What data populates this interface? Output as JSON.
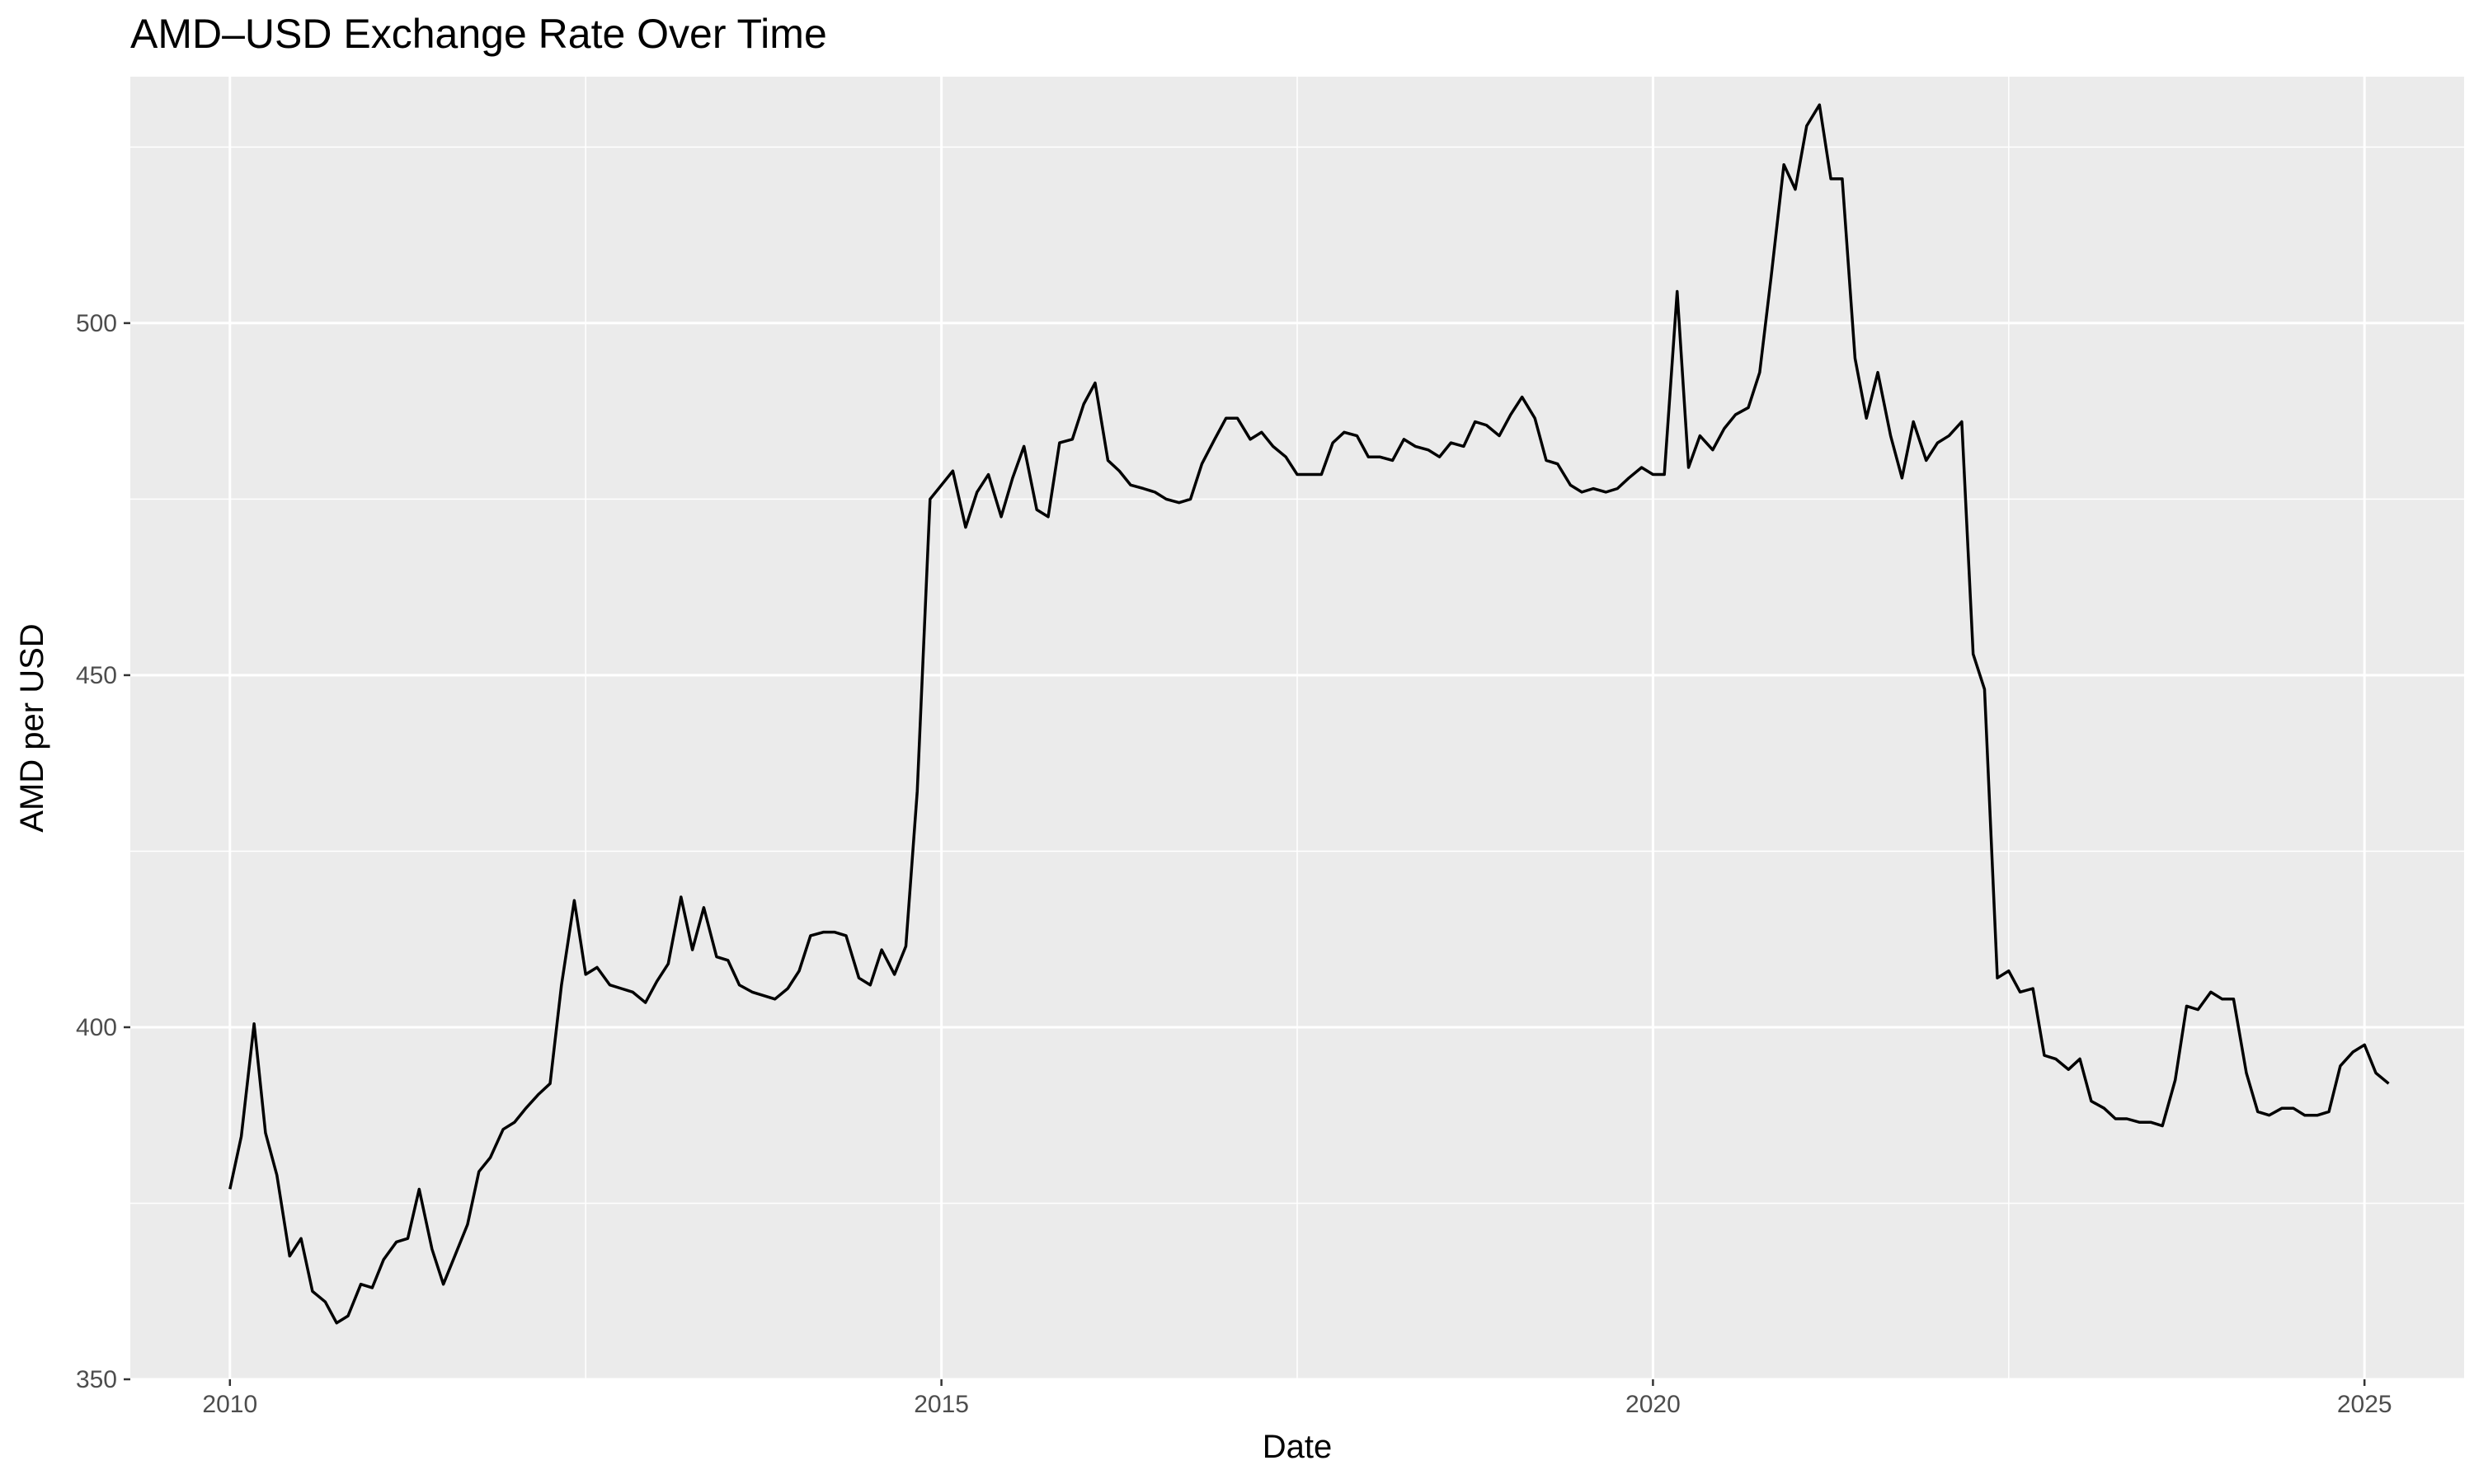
{
  "chart_data": {
    "type": "line",
    "title": "AMD–USD Exchange Rate Over Time",
    "xlabel": "Date",
    "ylabel": "AMD per USD",
    "xlim": [
      2009.3,
      2025.7
    ],
    "ylim": [
      350,
      535
    ],
    "x_ticks": [
      2010,
      2015,
      2020,
      2025
    ],
    "x_tick_labels": [
      "2010",
      "2015",
      "2020",
      "2025"
    ],
    "y_ticks": [
      350,
      400,
      450,
      500
    ],
    "y_tick_labels": [
      "350",
      "400",
      "450",
      "500"
    ],
    "grid": true,
    "background": "#ebebeb",
    "grid_color": "#ffffff",
    "line_color": "#000000",
    "series": [
      {
        "x": [
          2010.0,
          2010.08,
          2010.17,
          2010.25,
          2010.33,
          2010.42,
          2010.5,
          2010.58,
          2010.67,
          2010.75,
          2010.83,
          2010.92,
          2011.0,
          2011.08,
          2011.17,
          2011.25,
          2011.33,
          2011.42,
          2011.5,
          2011.58,
          2011.67,
          2011.75,
          2011.83,
          2011.92,
          2012.0,
          2012.08,
          2012.17,
          2012.25,
          2012.33,
          2012.42,
          2012.5,
          2012.58,
          2012.67,
          2012.75,
          2012.83,
          2012.92,
          2013.0,
          2013.08,
          2013.17,
          2013.25,
          2013.33,
          2013.42,
          2013.5,
          2013.58,
          2013.67,
          2013.75,
          2013.83,
          2013.92,
          2014.0,
          2014.08,
          2014.17,
          2014.25,
          2014.33,
          2014.42,
          2014.5,
          2014.58,
          2014.67,
          2014.75,
          2014.83,
          2014.92,
          2015.0,
          2015.08,
          2015.17,
          2015.25,
          2015.33,
          2015.42,
          2015.5,
          2015.58,
          2015.67,
          2015.75,
          2015.83,
          2015.92,
          2016.0,
          2016.08,
          2016.17,
          2016.25,
          2016.33,
          2016.42,
          2016.5,
          2016.58,
          2016.67,
          2016.75,
          2016.83,
          2016.92,
          2017.0,
          2017.08,
          2017.17,
          2017.25,
          2017.33,
          2017.42,
          2017.5,
          2017.58,
          2017.67,
          2017.75,
          2017.83,
          2017.92,
          2018.0,
          2018.08,
          2018.17,
          2018.25,
          2018.33,
          2018.42,
          2018.5,
          2018.58,
          2018.67,
          2018.75,
          2018.83,
          2018.92,
          2019.0,
          2019.08,
          2019.17,
          2019.25,
          2019.33,
          2019.42,
          2019.5,
          2019.58,
          2019.67,
          2019.75,
          2019.83,
          2019.92,
          2020.0,
          2020.08,
          2020.17,
          2020.25,
          2020.33,
          2020.42,
          2020.5,
          2020.58,
          2020.67,
          2020.75,
          2020.83,
          2020.92,
          2021.0,
          2021.08,
          2021.17,
          2021.25,
          2021.33,
          2021.42,
          2021.5,
          2021.58,
          2021.67,
          2021.75,
          2021.83,
          2021.92,
          2022.0,
          2022.08,
          2022.17,
          2022.25,
          2022.33,
          2022.42,
          2022.5,
          2022.58,
          2022.67,
          2022.75,
          2022.83,
          2022.92,
          2023.0,
          2023.08,
          2023.17,
          2023.25,
          2023.33,
          2023.42,
          2023.5,
          2023.58,
          2023.67,
          2023.75,
          2023.83,
          2023.92,
          2024.0,
          2024.08,
          2024.17,
          2024.25,
          2024.33,
          2024.42,
          2024.5,
          2024.58,
          2024.67,
          2024.75,
          2024.83,
          2024.92,
          2025.0,
          2025.08,
          2025.17
        ],
        "y": [
          377.0,
          384.5,
          400.5,
          385.0,
          379.0,
          367.5,
          370.0,
          362.5,
          361.0,
          358.0,
          359.0,
          363.5,
          363.0,
          367.0,
          369.5,
          370.0,
          377.0,
          368.5,
          363.5,
          367.5,
          372.0,
          379.5,
          381.5,
          385.5,
          386.5,
          388.5,
          390.5,
          392.0,
          406.0,
          418.0,
          407.5,
          408.5,
          406.0,
          405.5,
          405.0,
          403.5,
          406.5,
          409.0,
          418.5,
          411.0,
          417.0,
          410.0,
          409.5,
          406.0,
          405.0,
          404.5,
          404.0,
          405.5,
          408.0,
          413.0,
          413.5,
          413.5,
          413.0,
          407.0,
          406.0,
          411.0,
          407.5,
          411.5,
          433.5,
          475.0,
          477.0,
          479.0,
          471.0,
          476.0,
          478.5,
          472.5,
          478.0,
          482.5,
          473.5,
          472.5,
          483.0,
          483.5,
          488.5,
          491.5,
          480.5,
          479.0,
          477.0,
          476.5,
          476.0,
          475.0,
          474.5,
          475.0,
          480.0,
          483.5,
          486.5,
          486.5,
          483.5,
          484.5,
          482.5,
          481.0,
          478.5,
          478.5,
          478.5,
          483.0,
          484.5,
          484.0,
          481.0,
          481.0,
          480.5,
          483.5,
          482.5,
          482.0,
          481.0,
          483.0,
          482.5,
          486.0,
          485.5,
          484.0,
          487.0,
          489.5,
          486.5,
          480.5,
          480.0,
          477.0,
          476.0,
          476.5,
          476.0,
          476.5,
          478.0,
          479.5,
          478.5,
          478.5,
          504.5,
          479.5,
          484.0,
          482.0,
          485.0,
          487.0,
          488.0,
          493.0,
          506.5,
          522.5,
          519.0,
          528.0,
          531.0,
          520.5,
          520.5,
          495.0,
          486.5,
          493.0,
          484.0,
          478.0,
          486.0,
          480.5,
          483.0,
          484.0,
          486.0,
          453.0,
          448.0,
          407.0,
          408.0,
          405.0,
          405.5,
          396.0,
          395.5,
          394.0,
          395.5,
          389.5,
          388.5,
          387.0,
          387.0,
          386.5,
          386.5,
          386.0,
          392.5,
          403.0,
          402.5,
          405.0,
          404.0,
          404.0,
          393.5,
          388.0,
          387.5,
          388.5,
          388.5,
          387.5,
          387.5,
          388.0,
          394.5,
          396.5,
          397.5,
          393.5,
          392.0
        ]
      }
    ]
  }
}
